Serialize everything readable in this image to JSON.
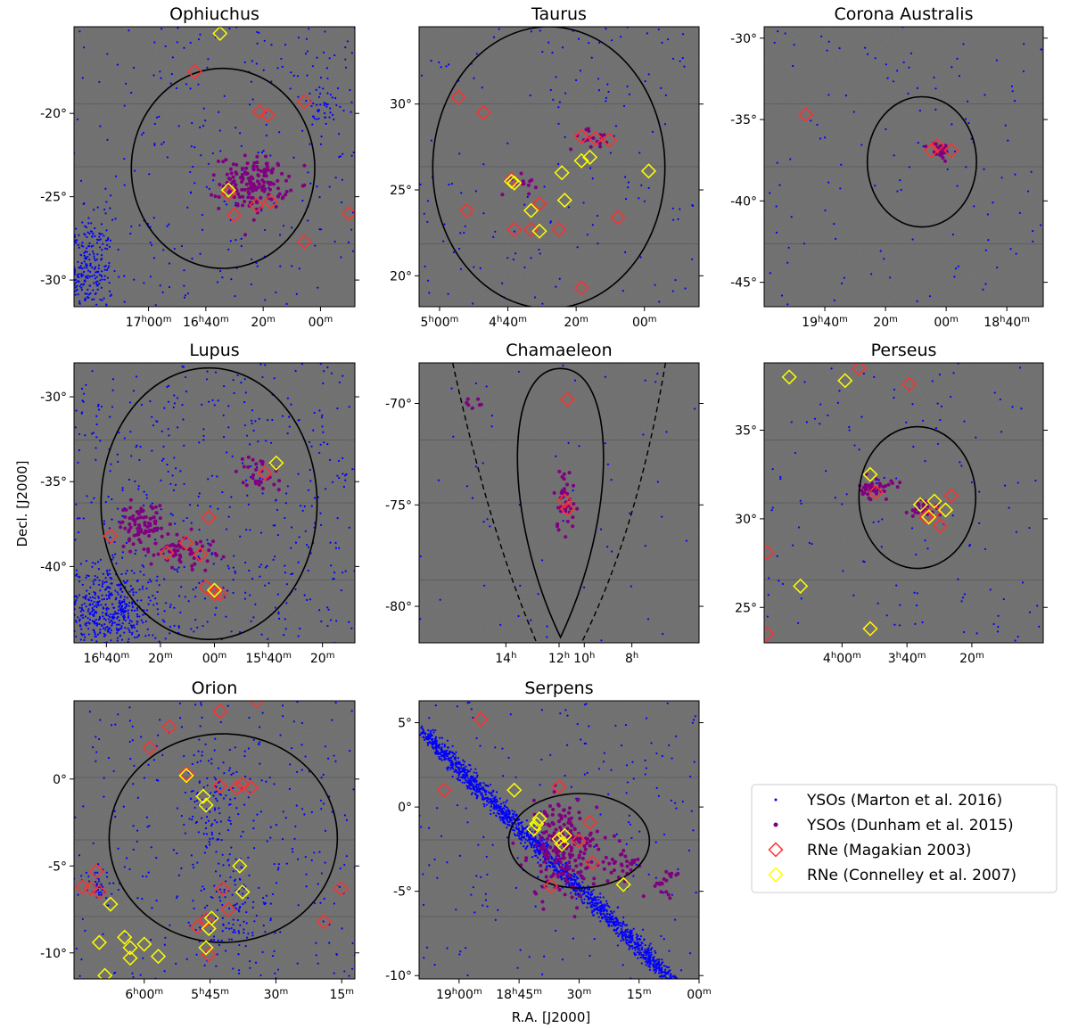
{
  "figure": {
    "ylabel": "Decl. [J2000]",
    "xlabel": "R.A. [J2000]"
  },
  "legend": {
    "entries": [
      {
        "label": "YSOs (Marton et al. 2016)",
        "marker": "dot",
        "color": "#0000ff"
      },
      {
        "label": "YSOs (Dunham et al. 2015)",
        "marker": "dot",
        "color": "#800080"
      },
      {
        "label": "RNe (Magakian 2003)",
        "marker": "diamond",
        "color": "#ff3030"
      },
      {
        "label": "RNe (Connelley et al. 2007)",
        "marker": "diamond",
        "color": "#ffff00"
      }
    ]
  },
  "colors": {
    "marton_yso": "#0000ff",
    "dunham_yso": "#800080",
    "magakian_rne": "#ff3030",
    "connelley_rne": "#ffff00",
    "background": "#6b6b6b",
    "region_outline": "#000000"
  },
  "chart_data": [
    {
      "type": "scatter",
      "title": "Ophiuchus",
      "ra_ticks": [
        {
          "h": 17,
          "m": 0,
          "label": "17h00m"
        },
        {
          "h": 16,
          "m": 40,
          "label": "16h40m"
        },
        {
          "h": 16,
          "m": 20,
          "label": "20m"
        },
        {
          "h": 16,
          "m": 0,
          "label": "00m"
        }
      ],
      "ra_range_deg": [
        261.5,
        237.0
      ],
      "dec_ticks": [
        -20,
        -25,
        -30
      ],
      "dec_range": [
        -31.6,
        -14.8
      ],
      "region": {
        "shape": "ellipse",
        "ra_deg": 248.5,
        "dec": -23.3,
        "half_width_deg": 8.0,
        "half_height_deg": 6.0
      },
      "rne_magakian": [
        [
          -17.5,
          0.43
        ],
        [
          -19.9,
          0.66
        ],
        [
          -20.1,
          0.69
        ],
        [
          -19.3,
          0.82
        ],
        [
          -24.8,
          0.55
        ],
        [
          -25.5,
          0.65
        ],
        [
          -25.3,
          0.7
        ],
        [
          -26.1,
          0.57
        ],
        [
          -27.7,
          0.82
        ],
        [
          -26.0,
          0.98
        ]
      ],
      "rne_connelley": [
        [
          -15.2,
          0.52
        ],
        [
          -24.6,
          0.55
        ]
      ],
      "dunham_clusters": [
        {
          "dec": -24.2,
          "fx": 0.64,
          "sx": 0.06,
          "sy": 0.8,
          "n": 160
        }
      ],
      "marton_clusters": [
        {
          "dec": -29.5,
          "fx": 0.04,
          "sx": 0.05,
          "sy": 1.6,
          "n": 320
        },
        {
          "dec": -19.7,
          "fx": 0.89,
          "sx": 0.04,
          "sy": 0.6,
          "n": 40
        }
      ],
      "marton_field": 260
    },
    {
      "type": "scatter",
      "title": "Taurus",
      "ra_ticks": [
        {
          "h": 5,
          "m": 0,
          "label": "5h00m"
        },
        {
          "h": 4,
          "m": 40,
          "label": "4h40m"
        },
        {
          "h": 4,
          "m": 20,
          "label": "20m"
        },
        {
          "h": 4,
          "m": 0,
          "label": "00m"
        }
      ],
      "ra_range_deg": [
        76.5,
        56.0
      ],
      "dec_ticks": [
        30,
        25,
        20
      ],
      "dec_range": [
        18.2,
        34.5
      ],
      "region": {
        "shape": "ellipse",
        "ra_deg": 67.0,
        "dec": 26.3,
        "half_width_deg": 8.5,
        "half_height_deg": 8.2
      },
      "rne_magakian": [
        [
          30.4,
          0.14
        ],
        [
          29.5,
          0.23
        ],
        [
          25.6,
          0.33
        ],
        [
          28.1,
          0.58
        ],
        [
          27.9,
          0.68
        ],
        [
          23.4,
          0.71
        ],
        [
          23.8,
          0.17
        ],
        [
          22.7,
          0.34
        ],
        [
          22.7,
          0.5
        ],
        [
          24.2,
          0.43
        ],
        [
          19.3,
          0.58
        ],
        [
          28.0,
          0.63
        ],
        [
          22.7,
          0.4
        ]
      ],
      "rne_connelley": [
        [
          25.5,
          0.33
        ],
        [
          25.4,
          0.34
        ],
        [
          23.8,
          0.4
        ],
        [
          22.6,
          0.43
        ],
        [
          26.0,
          0.51
        ],
        [
          24.4,
          0.52
        ],
        [
          26.7,
          0.58
        ],
        [
          26.9,
          0.61
        ],
        [
          26.1,
          0.82
        ]
      ],
      "dunham_clusters": [
        {
          "dec": 28.0,
          "fx": 0.63,
          "sx": 0.05,
          "sy": 0.3,
          "n": 20
        },
        {
          "dec": 25.5,
          "fx": 0.36,
          "sx": 0.03,
          "sy": 0.4,
          "n": 12
        }
      ],
      "marton_clusters": [],
      "marton_field": 150
    },
    {
      "type": "scatter",
      "title": "Corona Australis",
      "ra_ticks": [
        {
          "h": 19,
          "m": 40,
          "label": "19h40m"
        },
        {
          "h": 19,
          "m": 20,
          "label": "20m"
        },
        {
          "h": 19,
          "m": 0,
          "label": "00m"
        },
        {
          "h": 18,
          "m": 40,
          "label": "18h40m"
        }
      ],
      "ra_range_deg": [
        300.0,
        277.0
      ],
      "dec_ticks": [
        -30,
        -35,
        -40,
        -45
      ],
      "dec_range": [
        -46.5,
        -29.3
      ],
      "region": {
        "shape": "ellipse",
        "ra_deg": 287.0,
        "dec": -37.6,
        "half_width_deg": 4.5,
        "half_height_deg": 4.0
      },
      "rne_magakian": [
        [
          -34.7,
          0.15
        ],
        [
          -36.6,
          0.62
        ],
        [
          -36.9,
          0.67
        ],
        [
          -36.9,
          0.6
        ]
      ],
      "rne_connelley": [],
      "dunham_clusters": [
        {
          "dec": -36.9,
          "fx": 0.63,
          "sx": 0.02,
          "sy": 0.25,
          "n": 30
        }
      ],
      "marton_clusters": [],
      "marton_field": 120
    },
    {
      "type": "scatter",
      "title": "Lupus",
      "ra_ticks": [
        {
          "h": 16,
          "m": 40,
          "label": "16h40m"
        },
        {
          "h": 16,
          "m": 20,
          "label": "20m"
        },
        {
          "h": 16,
          "m": 0,
          "label": "00m"
        },
        {
          "h": 15,
          "m": 40,
          "label": "15h40m"
        },
        {
          "h": 15,
          "m": 20,
          "label": "20m"
        }
      ],
      "ra_range_deg": [
        253.0,
        227.0
      ],
      "dec_ticks": [
        -30,
        -35,
        -40
      ],
      "dec_range": [
        -44.5,
        -28.0
      ],
      "region": {
        "shape": "ellipse",
        "ra_deg": 240.5,
        "dec": -36.3,
        "half_width_deg": 10.0,
        "half_height_deg": 8.0
      },
      "rne_magakian": [
        [
          -38.2,
          0.13
        ],
        [
          -39.2,
          0.33
        ],
        [
          -38.6,
          0.4
        ],
        [
          -37.1,
          0.48
        ],
        [
          -39.3,
          0.45
        ],
        [
          -41.2,
          0.47
        ],
        [
          -41.6,
          0.5
        ],
        [
          -34.5,
          0.68
        ],
        [
          -41.6,
          0.52
        ]
      ],
      "rne_connelley": [
        [
          -33.9,
          0.72
        ],
        [
          -41.4,
          0.5
        ]
      ],
      "dunham_clusters": [
        {
          "dec": -37.5,
          "fx": 0.24,
          "sx": 0.04,
          "sy": 0.6,
          "n": 80
        },
        {
          "dec": -39.0,
          "fx": 0.38,
          "sx": 0.06,
          "sy": 0.5,
          "n": 60
        },
        {
          "dec": -34.6,
          "fx": 0.66,
          "sx": 0.04,
          "sy": 0.6,
          "n": 30
        }
      ],
      "marton_clusters": [
        {
          "dec": -42.6,
          "fx": 0.12,
          "sx": 0.09,
          "sy": 1.3,
          "n": 520
        }
      ],
      "marton_field": 460
    },
    {
      "type": "scatter",
      "title": "Chamaeleon",
      "ra_ticks": [
        {
          "h": 14,
          "m": 0,
          "label": "14h"
        },
        {
          "h": 12,
          "m": 0,
          "label": "12h"
        },
        {
          "h": 10,
          "m": 0,
          "label": "10h"
        },
        {
          "h": 8,
          "m": 0,
          "label": "8h"
        }
      ],
      "ra_range_deg": [],
      "dec_ticks": [
        -70,
        -75,
        -80
      ],
      "dec_range": [
        -81.8,
        -68.0
      ],
      "region": {
        "shape": "teardrop"
      },
      "rne_magakian": [
        [
          -69.8,
          0.53
        ],
        [
          -74.8,
          0.52
        ],
        [
          -75.2,
          0.53
        ]
      ],
      "rne_connelley": [],
      "dunham_clusters": [
        {
          "dec": -74.7,
          "fx": 0.52,
          "sx": 0.02,
          "sy": 0.8,
          "n": 40
        },
        {
          "dec": -70.0,
          "fx": 0.19,
          "sx": 0.02,
          "sy": 0.2,
          "n": 8
        }
      ],
      "marton_clusters": [],
      "marton_field": 60
    },
    {
      "type": "scatter",
      "title": "Perseus",
      "ra_ticks": [
        {
          "h": 4,
          "m": 0,
          "label": "4h00m"
        },
        {
          "h": 3,
          "m": 40,
          "label": "3h40m"
        },
        {
          "h": 3,
          "m": 20,
          "label": "20m"
        }
      ],
      "ra_range_deg": [
        66.0,
        44.5
      ],
      "dec_ticks": [
        35,
        30,
        25
      ],
      "dec_range": [
        23.0,
        38.8
      ],
      "region": {
        "shape": "ellipse",
        "ra_deg": 54.2,
        "dec": 31.2,
        "half_width_deg": 4.5,
        "half_height_deg": 4.0
      },
      "rne_magakian": [
        [
          38.5,
          0.34
        ],
        [
          37.6,
          0.52
        ],
        [
          31.5,
          0.4
        ],
        [
          30.1,
          0.58
        ],
        [
          30.4,
          0.61
        ],
        [
          29.6,
          0.63
        ],
        [
          31.3,
          0.67
        ],
        [
          23.5,
          0.01
        ],
        [
          28.1,
          0.01
        ],
        [
          23.8,
          0.38
        ]
      ],
      "rne_connelley": [
        [
          38.0,
          0.09
        ],
        [
          37.8,
          0.29
        ],
        [
          32.5,
          0.38
        ],
        [
          30.8,
          0.56
        ],
        [
          31.0,
          0.61
        ],
        [
          30.5,
          0.65
        ],
        [
          26.2,
          0.13
        ],
        [
          23.8,
          0.38
        ],
        [
          30.1,
          0.59
        ]
      ],
      "dunham_clusters": [
        {
          "dec": 31.7,
          "fx": 0.4,
          "sx": 0.03,
          "sy": 0.3,
          "n": 40
        },
        {
          "dec": 30.6,
          "fx": 0.58,
          "sx": 0.03,
          "sy": 0.3,
          "n": 25
        }
      ],
      "marton_clusters": [],
      "marton_field": 130
    },
    {
      "type": "scatter",
      "title": "Orion",
      "ra_ticks": [
        {
          "h": 6,
          "m": 0,
          "label": "6h00m"
        },
        {
          "h": 5,
          "m": 45,
          "label": "5h45m"
        },
        {
          "h": 5,
          "m": 30,
          "label": "30m"
        },
        {
          "h": 5,
          "m": 15,
          "label": "15m"
        }
      ],
      "ra_range_deg": [
        94.0,
        78.0
      ],
      "dec_ticks": [
        0,
        -5,
        -10
      ],
      "dec_range": [
        -11.5,
        4.5
      ],
      "region": {
        "shape": "ellipse",
        "ra_deg": 85.5,
        "dec": -3.4,
        "half_width_deg": 6.5,
        "half_height_deg": 6.0
      },
      "rne_magakian": [
        [
          3.9,
          0.52
        ],
        [
          4.5,
          0.65
        ],
        [
          3.0,
          0.34
        ],
        [
          1.8,
          0.27
        ],
        [
          0.3,
          0.4
        ],
        [
          -0.4,
          0.52
        ],
        [
          -0.5,
          0.58
        ],
        [
          -0.3,
          0.6
        ],
        [
          -0.5,
          0.63
        ],
        [
          -5.3,
          0.08
        ],
        [
          -6.2,
          0.03
        ],
        [
          -6.3,
          0.06
        ],
        [
          -6.5,
          0.09
        ],
        [
          -6.3,
          0.53
        ],
        [
          -6.3,
          0.95
        ],
        [
          -8.2,
          0.89
        ],
        [
          -8.5,
          0.44
        ],
        [
          -8.1,
          0.47
        ],
        [
          -10.1,
          0.48
        ],
        [
          -7.5,
          0.55
        ]
      ],
      "rne_connelley": [
        [
          0.2,
          0.4
        ],
        [
          -1.0,
          0.46
        ],
        [
          -1.5,
          0.47
        ],
        [
          -5.0,
          0.59
        ],
        [
          -6.5,
          0.6
        ],
        [
          -7.2,
          0.13
        ],
        [
          -9.4,
          0.09
        ],
        [
          -9.1,
          0.18
        ],
        [
          -9.7,
          0.2
        ],
        [
          -9.5,
          0.25
        ],
        [
          -10.3,
          0.2
        ],
        [
          -10.2,
          0.3
        ],
        [
          -11.3,
          0.11
        ],
        [
          -8.0,
          0.49
        ],
        [
          -8.6,
          0.48
        ],
        [
          -9.7,
          0.47
        ]
      ],
      "dunham_clusters": [],
      "marton_clusters": [
        {
          "dec": -1.5,
          "fx": 0.5,
          "sx": 0.05,
          "sy": 1.6,
          "n": 110
        },
        {
          "dec": -7.5,
          "fx": 0.56,
          "sx": 0.06,
          "sy": 1.6,
          "n": 110
        },
        {
          "dec": -6.3,
          "fx": 0.09,
          "sx": 0.03,
          "sy": 0.6,
          "n": 40
        }
      ],
      "marton_field": 300
    },
    {
      "type": "scatter",
      "title": "Serpens",
      "ra_ticks": [
        {
          "h": 19,
          "m": 0,
          "label": "19h00m"
        },
        {
          "h": 18,
          "m": 45,
          "label": "18h45m"
        },
        {
          "h": 18,
          "m": 30,
          "label": "30m"
        },
        {
          "h": 18,
          "m": 15,
          "label": "15m"
        },
        {
          "h": 18,
          "m": 0,
          "label": "00m"
        }
      ],
      "ra_range_deg": [
        287.5,
        270.0
      ],
      "dec_ticks": [
        5,
        0,
        -5,
        -10
      ],
      "dec_range": [
        -10.2,
        6.3
      ],
      "region": {
        "shape": "ellipse",
        "ra_deg": 277.5,
        "dec": -2.0,
        "half_width_deg": 4.4,
        "half_height_deg": 2.8
      },
      "rne_magakian": [
        [
          5.2,
          0.22
        ],
        [
          1.0,
          0.09
        ],
        [
          1.2,
          0.5
        ],
        [
          -0.9,
          0.61
        ],
        [
          -2.0,
          0.57
        ],
        [
          -3.3,
          0.62
        ],
        [
          -4.7,
          0.47
        ]
      ],
      "rne_connelley": [
        [
          1.0,
          0.34
        ],
        [
          -0.7,
          0.43
        ],
        [
          -1.3,
          0.41
        ],
        [
          -1.9,
          0.5
        ],
        [
          -2.2,
          0.51
        ],
        [
          -1.7,
          0.52
        ],
        [
          -4.6,
          0.73
        ],
        [
          -1.0,
          0.42
        ]
      ],
      "dunham_clusters": [
        {
          "dec": -2.5,
          "fx": 0.52,
          "sx": 0.06,
          "sy": 1.4,
          "n": 220
        },
        {
          "dec": -3.5,
          "fx": 0.72,
          "sx": 0.04,
          "sy": 0.5,
          "n": 30
        },
        {
          "dec": -4.5,
          "fx": 0.88,
          "sx": 0.03,
          "sy": 0.4,
          "n": 20
        }
      ],
      "marton_clusters": [
        {
          "band": true,
          "n": 1900
        }
      ],
      "marton_field": 180
    }
  ]
}
